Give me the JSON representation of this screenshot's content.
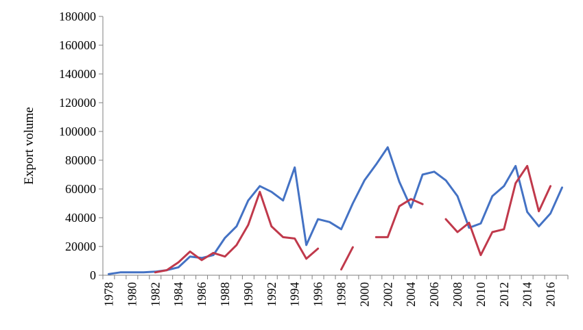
{
  "chart_data": {
    "type": "line",
    "title": "",
    "xlabel": "",
    "ylabel": "Export volume",
    "ylim": [
      0,
      180000
    ],
    "y_ticks": [
      "0",
      "20000",
      "40000",
      "60000",
      "80000",
      "100000",
      "120000",
      "140000",
      "160000",
      "180000"
    ],
    "x_tick_labels": [
      "1978",
      "1980",
      "1982",
      "1984",
      "1986",
      "1988",
      "1990",
      "1992",
      "1994",
      "1996",
      "1998",
      "2000",
      "2002",
      "2004",
      "2006",
      "2008",
      "2010",
      "2012",
      "2014",
      "2016"
    ],
    "grid": false,
    "legend": "none",
    "x": [
      1978,
      1979,
      1980,
      1981,
      1982,
      1983,
      1984,
      1985,
      1986,
      1987,
      1988,
      1989,
      1990,
      1991,
      1992,
      1993,
      1994,
      1995,
      1996,
      1997,
      1998,
      1999,
      2000,
      2001,
      2002,
      2003,
      2004,
      2005,
      2006,
      2007,
      2008,
      2009,
      2010,
      2011,
      2012,
      2013,
      2014,
      2015,
      2016,
      2017
    ],
    "series": [
      {
        "color": "#4472C4",
        "values": [
          800,
          2000,
          2000,
          2000,
          2500,
          3500,
          5500,
          13000,
          12000,
          14000,
          26000,
          34000,
          52000,
          62000,
          58000,
          52000,
          75000,
          21000,
          39000,
          37000,
          32000,
          50000,
          66000,
          77000,
          89000,
          65000,
          47000,
          70000,
          72000,
          66000,
          55000,
          33000,
          36000,
          55000,
          62000,
          76000,
          44000,
          34000,
          43000,
          61000
        ]
      },
      {
        "color": "#C0394B",
        "values": [
          null,
          null,
          null,
          null,
          2000,
          3500,
          9000,
          16500,
          10500,
          15500,
          13000,
          21000,
          35000,
          58000,
          34000,
          26500,
          25500,
          11500,
          18500,
          null,
          4000,
          19500,
          null,
          26500,
          26500,
          48000,
          53000,
          49500,
          null,
          39000,
          30000,
          36500,
          14000,
          30000,
          32000,
          64000,
          76000,
          44500,
          62000,
          null
        ]
      }
    ]
  }
}
